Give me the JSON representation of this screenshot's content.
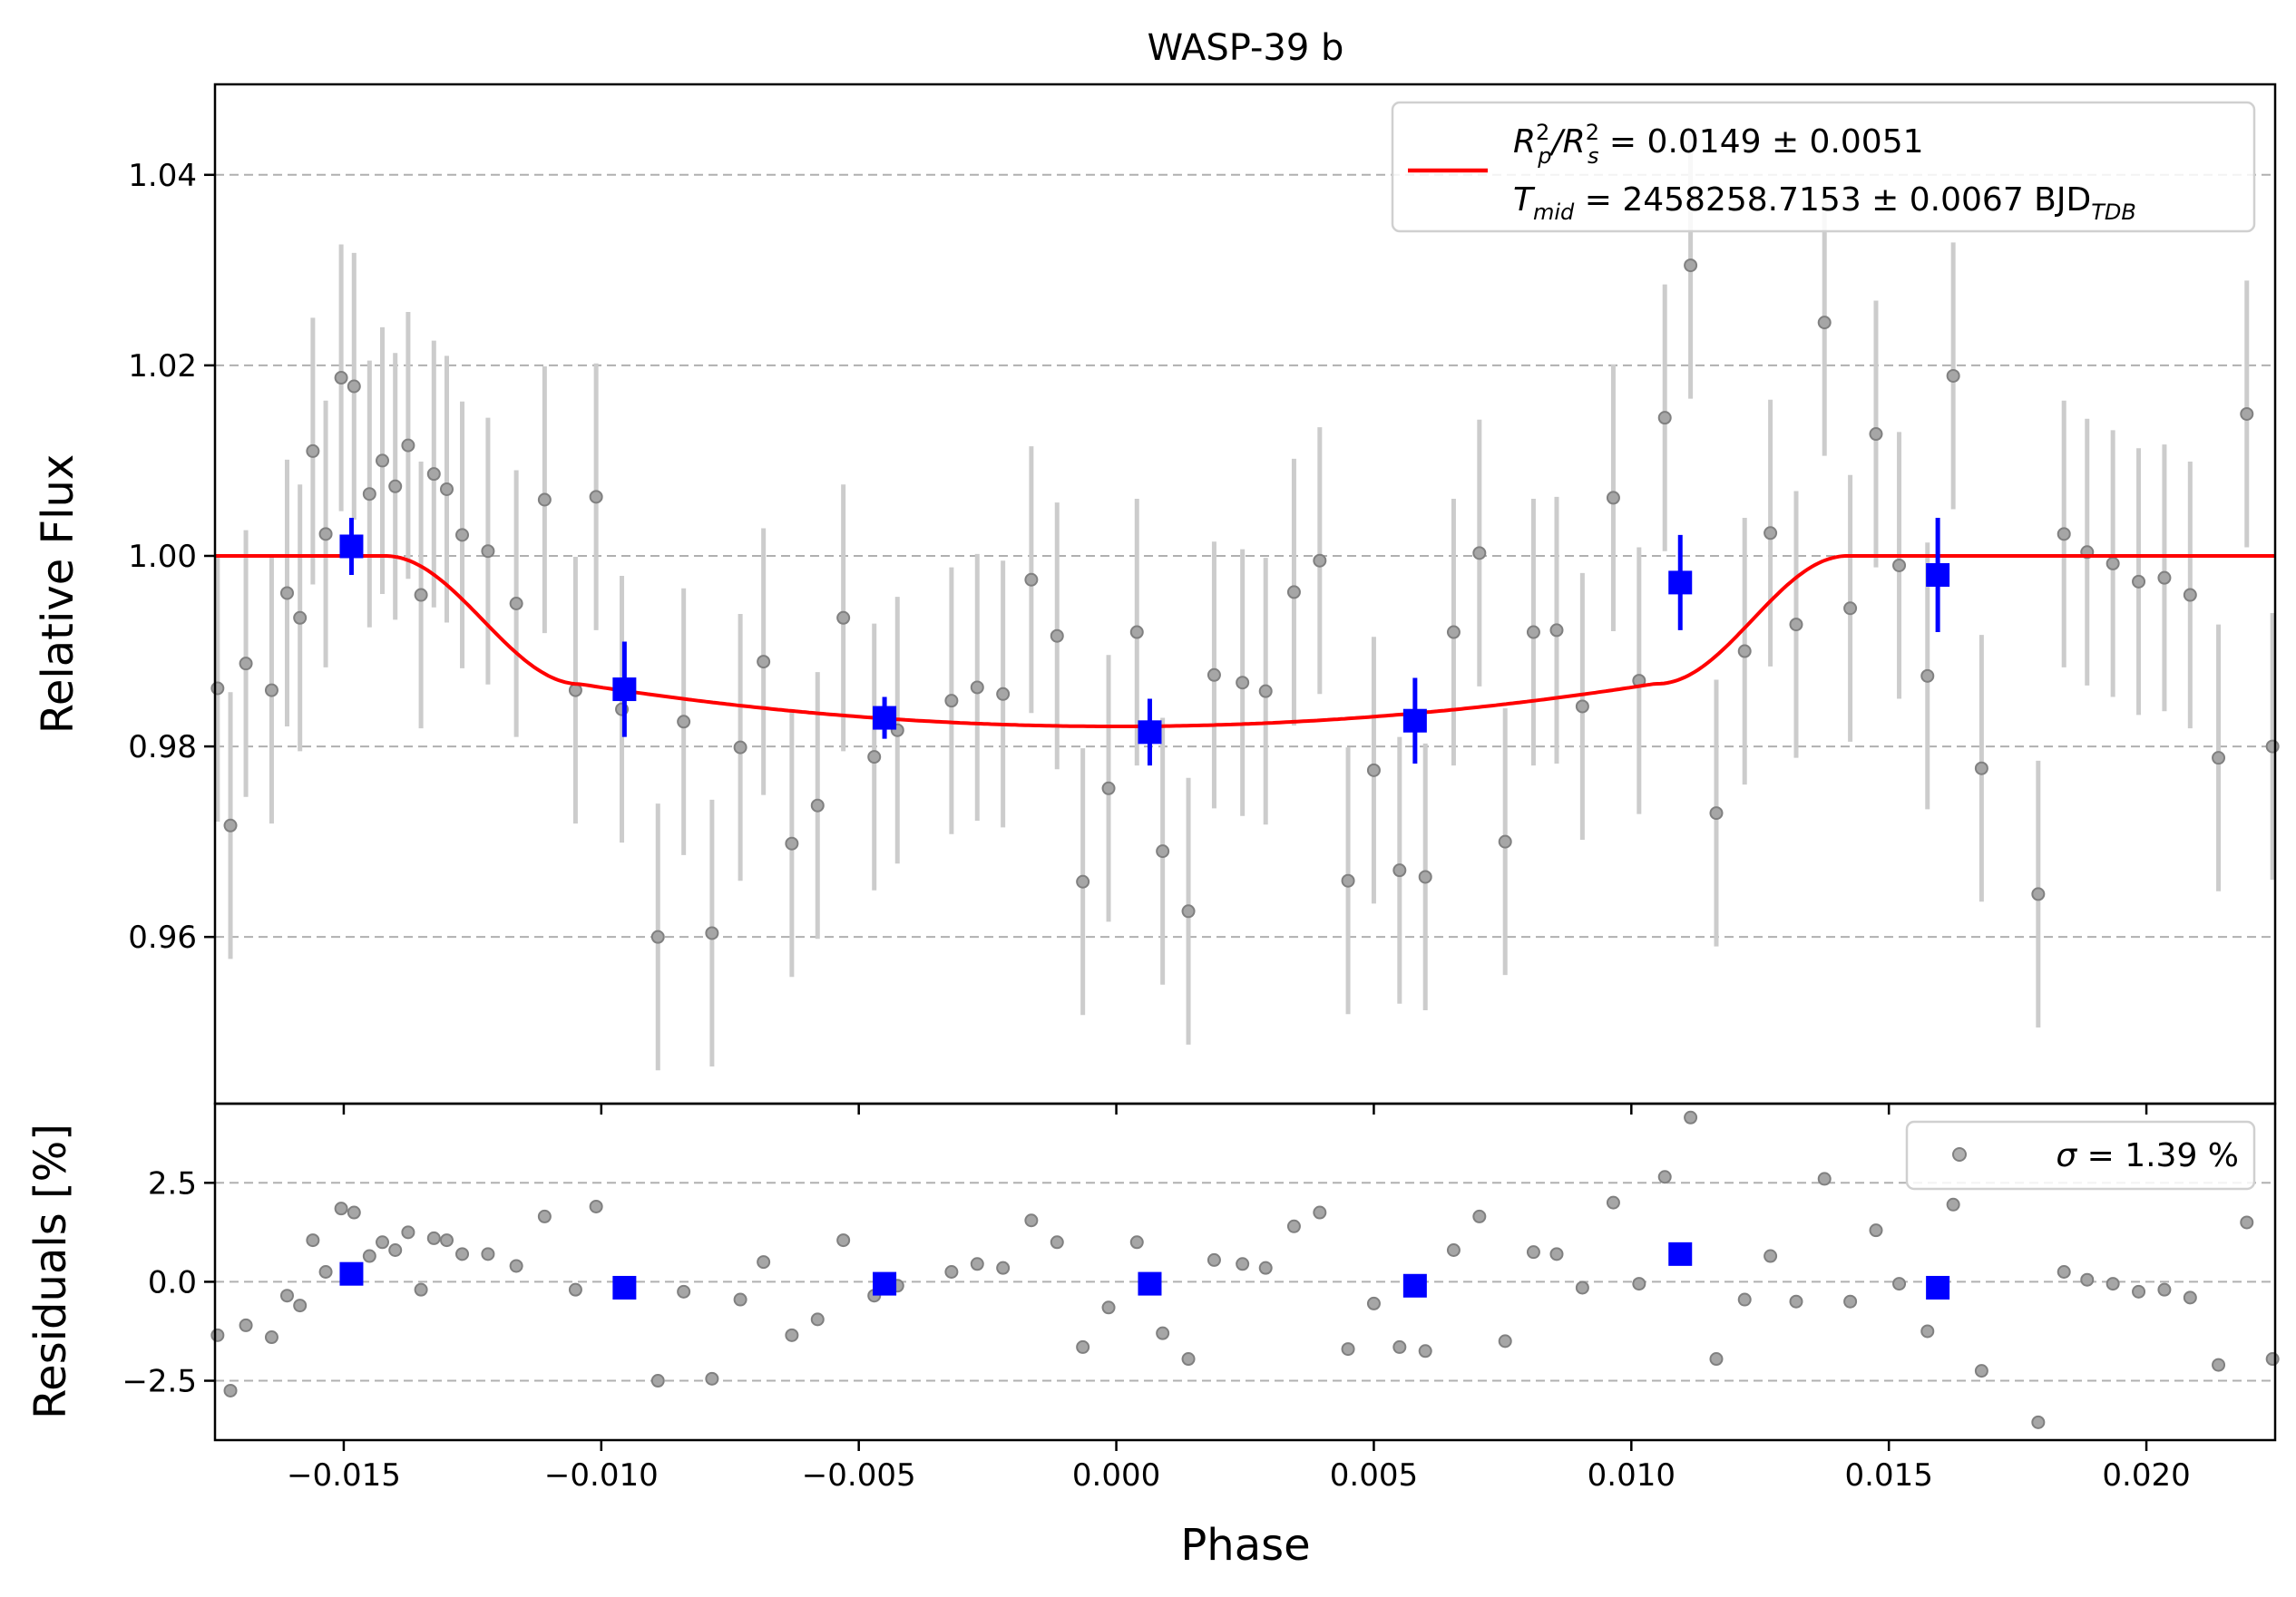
{
  "chart_data": {
    "type": "scatter",
    "title": "WASP-39 b",
    "xlabel": "Phase",
    "xlim": [
      -0.0175,
      0.0225
    ],
    "xticks": [
      -0.015,
      -0.01,
      -0.005,
      0.0,
      0.005,
      0.01,
      0.015,
      0.02
    ],
    "xtick_labels": [
      "−0.015",
      "−0.010",
      "−0.005",
      "0.000",
      "0.005",
      "0.010",
      "0.015",
      "0.020"
    ],
    "grid": "dashed horizontal",
    "panels": {
      "top": {
        "ylabel": "Relative Flux",
        "ylim": [
          0.9425,
          1.0495
        ],
        "yticks": [
          0.96,
          0.98,
          1.0,
          1.02,
          1.04
        ],
        "ytick_labels": [
          "0.96",
          "0.98",
          "1.00",
          "1.02",
          "1.04"
        ],
        "legend": {
          "placement": "top-right",
          "rp_label": "R",
          "rp_sub_p": "p",
          "rp_sup": "2",
          "rp_sep": "/R",
          "rp_sub_s": "s",
          "rp_value": " = 0.0149 ± 0.0051",
          "t_label": "T",
          "t_sub": "mid",
          "t_value": " = 2458258.7153 ± 0.0067 BJD",
          "t_value_sub": "TDB"
        },
        "raw_points": [
          [
            -0.01745,
            0.9861
          ],
          [
            -0.0172,
            0.9717
          ],
          [
            -0.0169,
            0.9887
          ],
          [
            -0.0164,
            0.9859
          ],
          [
            -0.0161,
            0.9961
          ],
          [
            -0.01585,
            0.9935
          ],
          [
            -0.0156,
            1.011
          ],
          [
            -0.01535,
            1.0023
          ],
          [
            -0.01505,
            1.0187
          ],
          [
            -0.0148,
            1.0178
          ],
          [
            -0.0145,
            1.0065
          ],
          [
            -0.01425,
            1.01
          ],
          [
            -0.014,
            1.0073
          ],
          [
            -0.01375,
            1.0116
          ],
          [
            -0.0135,
            0.9959
          ],
          [
            -0.01325,
            1.0086
          ],
          [
            -0.013,
            1.007
          ],
          [
            -0.0127,
            1.0022
          ],
          [
            -0.0122,
            1.0005
          ],
          [
            -0.01165,
            0.995
          ],
          [
            -0.0111,
            1.0059
          ],
          [
            -0.0105,
            0.9859
          ],
          [
            -0.0101,
            1.0062
          ],
          [
            -0.0096,
            0.9839
          ],
          [
            -0.0089,
            0.96
          ],
          [
            -0.0084,
            0.9826
          ],
          [
            -0.00785,
            0.9604
          ],
          [
            -0.0073,
            0.9799
          ],
          [
            -0.00685,
            0.9889
          ],
          [
            -0.0063,
            0.9698
          ],
          [
            -0.0058,
            0.9738
          ],
          [
            -0.0053,
            0.9935
          ],
          [
            -0.0047,
            0.9789
          ],
          [
            -0.00425,
            0.9817
          ],
          [
            -0.0032,
            0.9848
          ],
          [
            -0.0027,
            0.9862
          ],
          [
            -0.0022,
            0.9855
          ],
          [
            -0.00165,
            0.9975
          ],
          [
            -0.00115,
            0.9916
          ],
          [
            -0.00065,
            0.9658
          ],
          [
            -0.00015,
            0.9756
          ],
          [
            0.0004,
            0.992
          ],
          [
            0.0009,
            0.969
          ],
          [
            0.0014,
            0.9627
          ],
          [
            0.0019,
            0.9875
          ],
          [
            0.00245,
            0.9867
          ],
          [
            0.0029,
            0.9858
          ],
          [
            0.00345,
            0.9962
          ],
          [
            0.00395,
            0.9995
          ],
          [
            0.0045,
            0.9659
          ],
          [
            0.005,
            0.9775
          ],
          [
            0.0055,
            0.967
          ],
          [
            0.006,
            0.9663
          ],
          [
            0.00655,
            0.992
          ],
          [
            0.00705,
            1.0003
          ],
          [
            0.00755,
            0.97
          ],
          [
            0.0081,
            0.992
          ],
          [
            0.00855,
            0.9922
          ],
          [
            0.00905,
            0.9842
          ],
          [
            0.00965,
            1.0061
          ],
          [
            0.01015,
            0.9869
          ],
          [
            0.01065,
            1.0145
          ],
          [
            0.01115,
            1.0305
          ],
          [
            0.01165,
            0.973
          ],
          [
            0.0122,
            0.99
          ],
          [
            0.0127,
            1.0024
          ],
          [
            0.0132,
            0.9928
          ],
          [
            0.01375,
            1.0245
          ],
          [
            0.01425,
            0.9945
          ],
          [
            0.01475,
            1.0128
          ],
          [
            0.0152,
            0.999
          ],
          [
            0.01575,
            0.9874
          ],
          [
            0.01625,
            1.0189
          ],
          [
            0.0168,
            0.9777
          ],
          [
            0.0179,
            0.9645
          ],
          [
            0.0184,
            1.0023
          ],
          [
            0.01885,
            1.0004
          ],
          [
            0.01935,
            0.9992
          ],
          [
            0.01985,
            0.9973
          ],
          [
            0.02035,
            0.9977
          ],
          [
            0.02085,
            0.9959
          ],
          [
            0.0214,
            0.9788
          ],
          [
            0.02195,
            1.0149
          ],
          [
            0.02245,
            0.98
          ]
        ],
        "raw_error": 0.014,
        "binned_points": [
          [
            -0.01485,
            1.001,
            0.003
          ],
          [
            -0.00955,
            0.986,
            0.005
          ],
          [
            -0.0045,
            0.983,
            0.0022
          ],
          [
            0.00065,
            0.9815,
            0.0035
          ],
          [
            0.0058,
            0.9827,
            0.0045
          ],
          [
            0.01095,
            0.9972,
            0.005
          ],
          [
            0.01595,
            0.998,
            0.006
          ]
        ],
        "model": {
          "name": "transit model",
          "baseline": 1.0,
          "depth": 0.0179,
          "t1": -0.0142,
          "t2": -0.0104,
          "t3": 0.0105,
          "t4": 0.0142
        }
      },
      "bottom": {
        "ylabel": "Residuals [%]",
        "ylim": [
          -4.0,
          4.5
        ],
        "yticks": [
          -2.5,
          0.0,
          2.5
        ],
        "ytick_labels": [
          "−2.5",
          "0.0",
          "2.5"
        ],
        "legend": {
          "placement": "top-right",
          "sigma_symbol": "σ",
          "sigma_value": " = 1.39 %"
        },
        "residuals": [
          [
            -0.01745,
            -1.35
          ],
          [
            -0.0172,
            -2.75
          ],
          [
            -0.0169,
            -1.1
          ],
          [
            -0.0164,
            -1.4
          ],
          [
            -0.0161,
            -0.35
          ],
          [
            -0.01585,
            -0.6
          ],
          [
            -0.0156,
            1.05
          ],
          [
            -0.01535,
            0.25
          ],
          [
            -0.01505,
            1.85
          ],
          [
            -0.0148,
            1.75
          ],
          [
            -0.0145,
            0.65
          ],
          [
            -0.01425,
            1.0
          ],
          [
            -0.014,
            0.8
          ],
          [
            -0.01375,
            1.25
          ],
          [
            -0.0135,
            -0.2
          ],
          [
            -0.01325,
            1.1
          ],
          [
            -0.013,
            1.05
          ],
          [
            -0.0127,
            0.7
          ],
          [
            -0.0122,
            0.7
          ],
          [
            -0.01165,
            0.4
          ],
          [
            -0.0111,
            1.65
          ],
          [
            -0.0105,
            -0.2
          ],
          [
            -0.0101,
            1.9
          ],
          [
            -0.0096,
            -0.25
          ],
          [
            -0.0089,
            -2.5
          ],
          [
            -0.0084,
            -0.25
          ],
          [
            -0.00785,
            -2.45
          ],
          [
            -0.0073,
            -0.45
          ],
          [
            -0.00685,
            0.5
          ],
          [
            -0.0063,
            -1.35
          ],
          [
            -0.0058,
            -0.95
          ],
          [
            -0.0053,
            1.05
          ],
          [
            -0.0047,
            -0.35
          ],
          [
            -0.00425,
            -0.1
          ],
          [
            -0.0032,
            0.25
          ],
          [
            -0.0027,
            0.45
          ],
          [
            -0.0022,
            0.35
          ],
          [
            -0.00165,
            1.55
          ],
          [
            -0.00115,
            1.0
          ],
          [
            -0.00065,
            -1.65
          ],
          [
            -0.00015,
            -0.65
          ],
          [
            0.0004,
            1.0
          ],
          [
            0.0009,
            -1.3
          ],
          [
            0.0014,
            -1.95
          ],
          [
            0.0019,
            0.55
          ],
          [
            0.00245,
            0.45
          ],
          [
            0.0029,
            0.35
          ],
          [
            0.00345,
            1.4
          ],
          [
            0.00395,
            1.75
          ],
          [
            0.0045,
            -1.7
          ],
          [
            0.005,
            -0.55
          ],
          [
            0.0055,
            -1.65
          ],
          [
            0.006,
            -1.75
          ],
          [
            0.00655,
            0.8
          ],
          [
            0.00705,
            1.65
          ],
          [
            0.00755,
            -1.5
          ],
          [
            0.0081,
            0.75
          ],
          [
            0.00855,
            0.7
          ],
          [
            0.00905,
            -0.15
          ],
          [
            0.00965,
            2.0
          ],
          [
            0.01015,
            -0.05
          ],
          [
            0.01065,
            2.65
          ],
          [
            0.01115,
            4.15
          ],
          [
            0.01165,
            -1.95
          ],
          [
            0.0122,
            -0.45
          ],
          [
            0.0127,
            0.65
          ],
          [
            0.0132,
            -0.5
          ],
          [
            0.01375,
            2.6
          ],
          [
            0.01425,
            -0.5
          ],
          [
            0.01475,
            1.3
          ],
          [
            0.0152,
            -0.05
          ],
          [
            0.01575,
            -1.25
          ],
          [
            0.01625,
            1.95
          ],
          [
            0.0168,
            -2.25
          ],
          [
            0.0179,
            -3.55
          ],
          [
            0.0184,
            0.25
          ],
          [
            0.01885,
            0.05
          ],
          [
            0.01935,
            -0.05
          ],
          [
            0.01985,
            -0.25
          ],
          [
            0.02035,
            -0.2
          ],
          [
            0.02085,
            -0.4
          ],
          [
            0.0214,
            -2.1
          ],
          [
            0.02195,
            1.5
          ],
          [
            0.02245,
            -1.95
          ]
        ],
        "binned_residuals": [
          [
            -0.01485,
            0.2
          ],
          [
            -0.00955,
            -0.15
          ],
          [
            -0.0045,
            -0.05
          ],
          [
            0.00065,
            -0.05
          ],
          [
            0.0058,
            -0.1
          ],
          [
            0.01095,
            0.7
          ],
          [
            0.01595,
            -0.15
          ]
        ]
      }
    },
    "colors": {
      "raw": "#808080",
      "raw_error": "#cccccc",
      "binned": "#0000ff",
      "model": "#ff0000",
      "grid": "#b0b0b0"
    }
  }
}
